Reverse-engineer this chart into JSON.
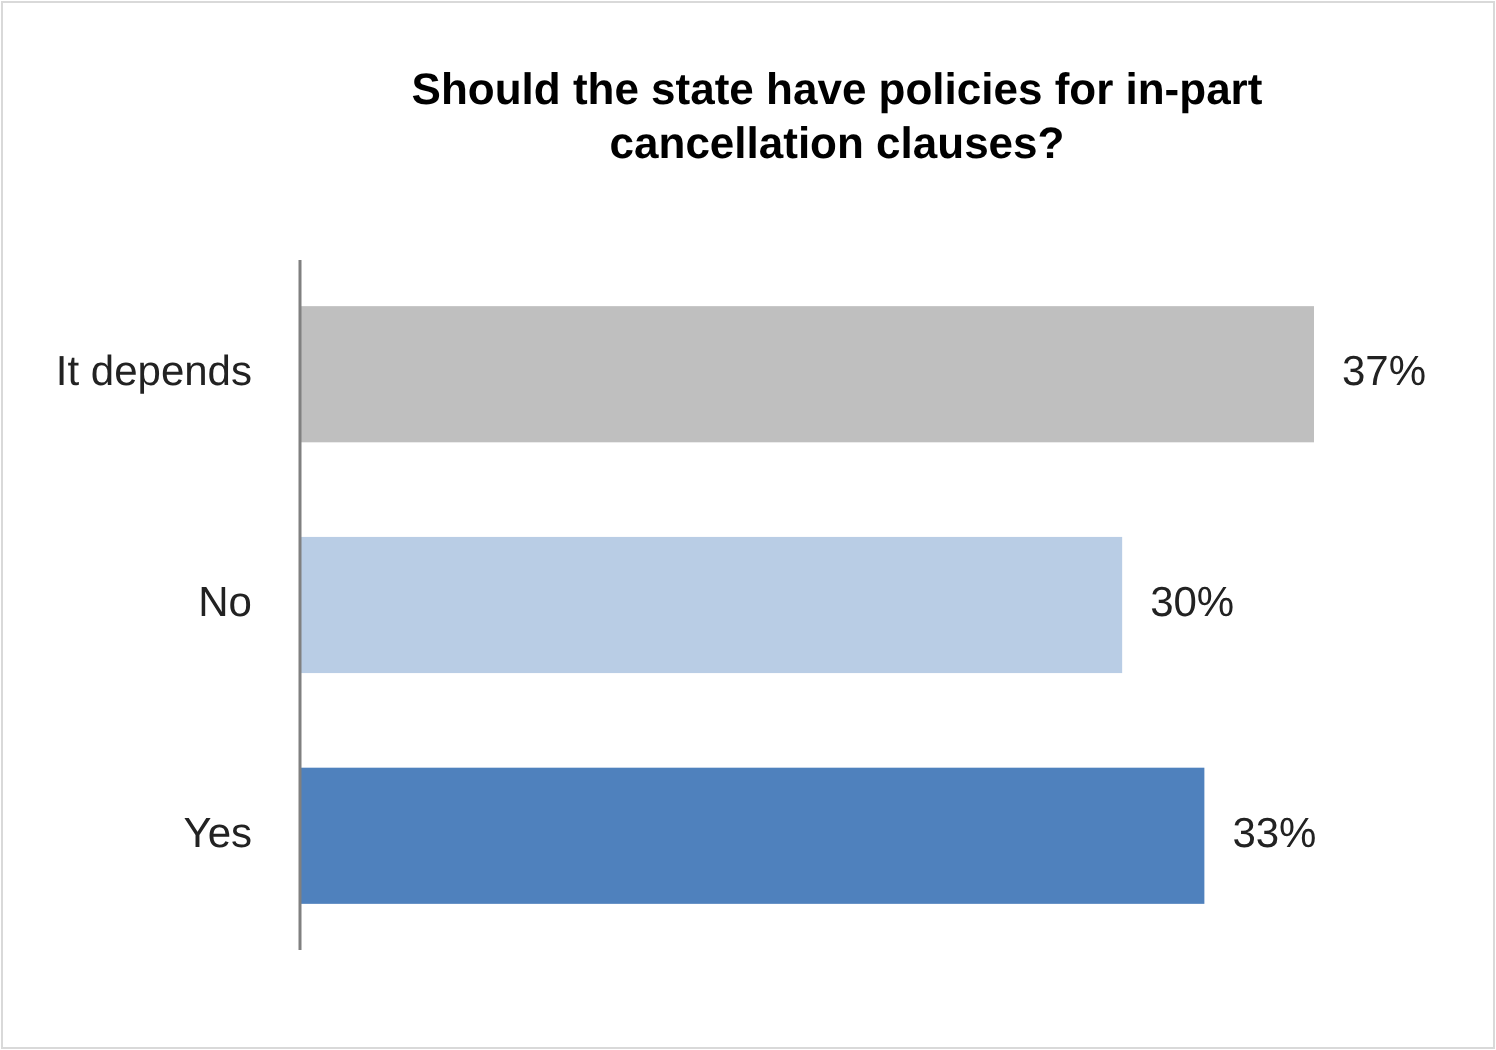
{
  "chart_data": {
    "type": "bar",
    "orientation": "horizontal",
    "title": "Should the state have policies for in-part cancellation clauses?",
    "categories": [
      "It depends",
      "No",
      "Yes"
    ],
    "values": [
      37,
      30,
      33
    ],
    "colors": [
      "#bfbfbf",
      "#b9cde5",
      "#4f81bd"
    ],
    "value_labels": [
      "37%",
      "30%",
      "33%"
    ]
  }
}
